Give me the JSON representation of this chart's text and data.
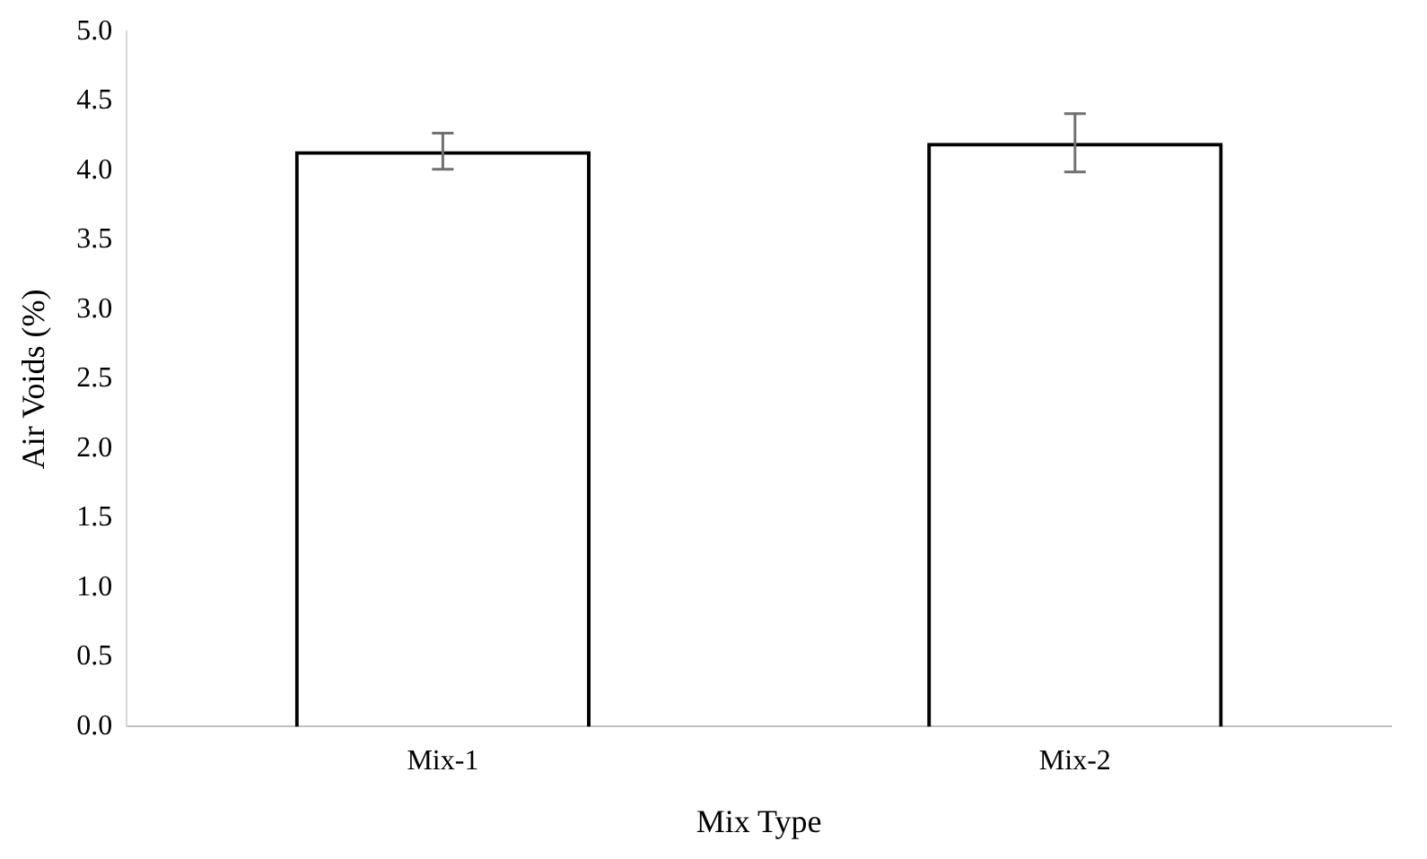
{
  "chart_data": {
    "type": "bar",
    "xlabel": "Mix Type",
    "ylabel": "Air Voids (%)",
    "categories": [
      "Mix-1",
      "Mix-2"
    ],
    "values": [
      4.14,
      4.2
    ],
    "errors": [
      0.13,
      0.21
    ],
    "color": "#000000",
    "ylim": [
      0,
      5
    ],
    "yticks": [
      {
        "value": 0,
        "label": "0.0"
      },
      {
        "value": 0.5,
        "label": "0.5"
      },
      {
        "value": 1,
        "label": "1.0"
      },
      {
        "value": 1.5,
        "label": "1.5"
      },
      {
        "value": 2,
        "label": "2.0"
      },
      {
        "value": 2.5,
        "label": "2.5"
      },
      {
        "value": 3,
        "label": "3.0"
      },
      {
        "value": 3.5,
        "label": "3.5"
      },
      {
        "value": 4,
        "label": "4.0"
      },
      {
        "value": 4.5,
        "label": "4.5"
      },
      {
        "value": 5,
        "label": "5.0"
      }
    ],
    "grid": false,
    "legend": false
  }
}
